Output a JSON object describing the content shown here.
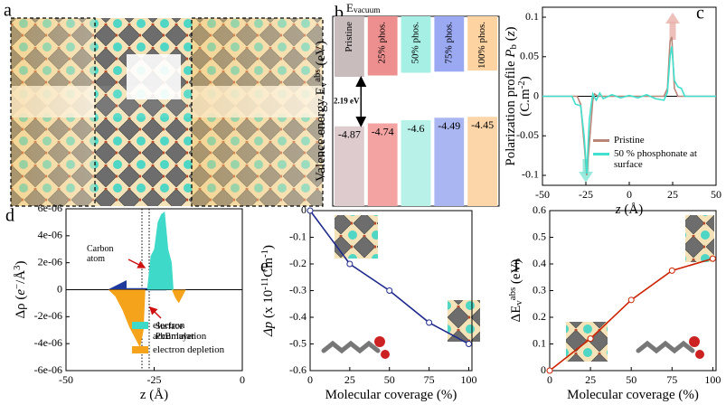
{
  "chart_data": [
    {
      "type": "image",
      "panel_label": "a"
    },
    {
      "type": "band",
      "panel_label": "b",
      "vacuum_label": [
        {
          "t": "E"
        },
        {
          "t": "vacuum",
          "s": "sub"
        }
      ],
      "ylabel": [
        {
          "t": "Valence energy E"
        },
        {
          "t": "v",
          "s": "sub"
        },
        {
          "t": "abs",
          "s": "sup"
        },
        {
          "t": " (eV)"
        }
      ],
      "categories": [
        "Pristine",
        "25% phos.",
        "50% phos.",
        "75% phos.",
        "100% phos."
      ],
      "upper_colors": [
        "#c9bcbd",
        "#ee8f8f",
        "#a6efe4",
        "#9aa9f2",
        "#fdd3a2"
      ],
      "colors": [
        "#ddcbcd",
        "#f4a3a3",
        "#b7f1e8",
        "#a9b6f2",
        "#fcd6a9"
      ],
      "upper_edges": [
        -2.68,
        -2.62,
        -2.5,
        -2.45,
        -2.4
      ],
      "values": [
        -4.87,
        -4.74,
        -4.6,
        -4.49,
        -4.45
      ],
      "gap_label": "2.19 eV",
      "ylim": [
        -8.4,
        0
      ]
    },
    {
      "type": "line",
      "panel_label": "c",
      "xlabel": [
        {
          "t": "z",
          "s": "i"
        },
        {
          "t": " (Å)"
        }
      ],
      "ylabel": [
        {
          "t": "Polarization profile "
        },
        {
          "t": "P",
          "s": "i"
        },
        {
          "t": "b",
          "s": "sub"
        },
        {
          "t": " ("
        },
        {
          "t": "z",
          "s": "i"
        },
        {
          "t": ")"
        }
      ],
      "ylabel2": [
        {
          "t": "(C.m"
        },
        {
          "t": "-2",
          "s": "sup"
        },
        {
          "t": ")"
        }
      ],
      "xlim": [
        -50,
        50
      ],
      "ylim": [
        -0.1126,
        0.1126
      ],
      "xticks": [
        -50,
        -25,
        0,
        25,
        50
      ],
      "yticks": [
        -0.1,
        -0.05,
        0,
        0.05,
        0.1
      ],
      "zero_line": true,
      "legend": "lower right",
      "series": [
        {
          "name": "Pristine",
          "color": "#b8877a",
          "x": [
            -50,
            -30,
            -28,
            -26,
            -24.5,
            -23,
            -21,
            -20,
            -18,
            20,
            22,
            23.5,
            24.5,
            26,
            28,
            50
          ],
          "values": [
            0,
            0,
            -0.01,
            -0.06,
            -0.1,
            -0.06,
            -0.005,
            0.003,
            0,
            0,
            0.01,
            0.07,
            0.075,
            0.01,
            0,
            0
          ]
        },
        {
          "name": "50 % phosphonate at surface",
          "color": "#3fe0cc",
          "x": [
            -50,
            -33,
            -31,
            -28,
            -26,
            -24.5,
            -23,
            -22,
            -21,
            -19,
            -17,
            -15,
            -10,
            -5,
            0,
            5,
            10,
            15,
            20,
            22,
            23.5,
            24.5,
            26,
            28,
            30,
            32,
            50
          ],
          "values": [
            0,
            0,
            -0.01,
            -0.012,
            -0.05,
            -0.098,
            -0.03,
            -0.012,
            0.003,
            -0.005,
            0.004,
            -0.003,
            0.002,
            -0.002,
            0.001,
            -0.002,
            0.002,
            -0.003,
            -0.005,
            0.005,
            0.05,
            0.063,
            0.02,
            0.012,
            0.01,
            0,
            0
          ]
        }
      ]
    },
    {
      "type": "area",
      "panel_label": "d",
      "xlabel": [
        {
          "t": "z (Å)"
        }
      ],
      "ylabel": [
        {
          "t": "Δρ ("
        },
        {
          "t": "e",
          "s": "i"
        },
        {
          "t": "−",
          "s": "sup"
        },
        {
          "t": "/Å"
        },
        {
          "t": "3",
          "s": "sup"
        },
        {
          "t": ")"
        }
      ],
      "xlim": [
        -50,
        0
      ],
      "ylim": [
        -6e-06,
        6e-06
      ],
      "xticks": [
        -50,
        -25,
        0
      ],
      "yticks": [
        {
          "value": 6e-06,
          "label": "6e-06"
        },
        {
          "value": 4e-06,
          "label": "4e-06"
        },
        {
          "value": 2e-06,
          "label": "2e-06"
        },
        0,
        {
          "value": -2e-06,
          "label": "-2e-06"
        },
        {
          "value": -4e-06,
          "label": "-4e-06"
        },
        {
          "value": -6e-06,
          "label": "-6e-06"
        }
      ],
      "zero_line": true,
      "legend": "lower right",
      "annotations": [
        [
          "Carbon",
          "atom"
        ],
        [
          "Surface",
          "PbBr layer"
        ]
      ],
      "series": [
        {
          "name": "electron accumulation",
          "color": "#3fd9c9",
          "x": [
            -27,
            -26,
            -25,
            -24,
            -23,
            -22,
            -21,
            -20,
            -19.5
          ],
          "values": [
            0,
            2.5e-06,
            3e-06,
            5e-06,
            5.6e-06,
            5.8e-06,
            3e-06,
            2e-06,
            0
          ]
        },
        {
          "name": "electron depletion",
          "color": "#f5a31a",
          "x": [
            -38,
            -36,
            -34,
            -32,
            -30,
            -29,
            -28,
            -27.5,
            null,
            -20,
            -19,
            -18,
            -17,
            -16
          ],
          "values": [
            0,
            -5e-07,
            -1.5e-06,
            -2.8e-06,
            -3.8e-06,
            -4.3e-06,
            -3e-06,
            0,
            null,
            0,
            -6e-07,
            -1e-06,
            -5e-07,
            0
          ]
        }
      ]
    },
    {
      "type": "line",
      "panel_label": "e",
      "markers": true,
      "xlabel": [
        {
          "t": "Molecular coverage (%)"
        }
      ],
      "ylabel": [
        {
          "t": "Δp",
          "s": "i"
        },
        {
          "t": " (x 10"
        },
        {
          "t": "-11",
          "s": "sup"
        },
        {
          "t": "Cm"
        },
        {
          "t": "-1",
          "s": "sup"
        },
        {
          "t": ")"
        }
      ],
      "xlim": [
        0,
        102
      ],
      "ylim": [
        -0.6,
        0
      ],
      "xticks": [
        0,
        25,
        50,
        75,
        100
      ],
      "yticks": [
        0,
        -0.1,
        -0.2,
        -0.3,
        -0.4,
        -0.5,
        -0.6
      ],
      "series": [
        {
          "color": "#1f2a8c",
          "x": [
            0,
            25,
            50,
            75,
            100
          ],
          "values": [
            0,
            -0.2,
            -0.3,
            -0.42,
            -0.5
          ]
        }
      ]
    },
    {
      "type": "line",
      "panel_label": "f",
      "markers": true,
      "xlabel": [
        {
          "t": "Molecular coverage (%)"
        }
      ],
      "ylabel": [
        {
          "t": "ΔE"
        },
        {
          "t": "v",
          "s": "sub"
        },
        {
          "t": "abs",
          "s": "sup"
        },
        {
          "t": " (eV)"
        }
      ],
      "xlim": [
        0,
        102
      ],
      "ylim": [
        0,
        0.6
      ],
      "xticks": [
        0,
        25,
        50,
        75,
        100
      ],
      "yticks": [
        0,
        0.1,
        0.2,
        0.3,
        0.4,
        0.5,
        0.6
      ],
      "series": [
        {
          "color": "#cc2200",
          "x": [
            0,
            25,
            50,
            75,
            100
          ],
          "values": [
            0,
            0.12,
            0.265,
            0.375,
            0.42
          ]
        }
      ]
    }
  ]
}
